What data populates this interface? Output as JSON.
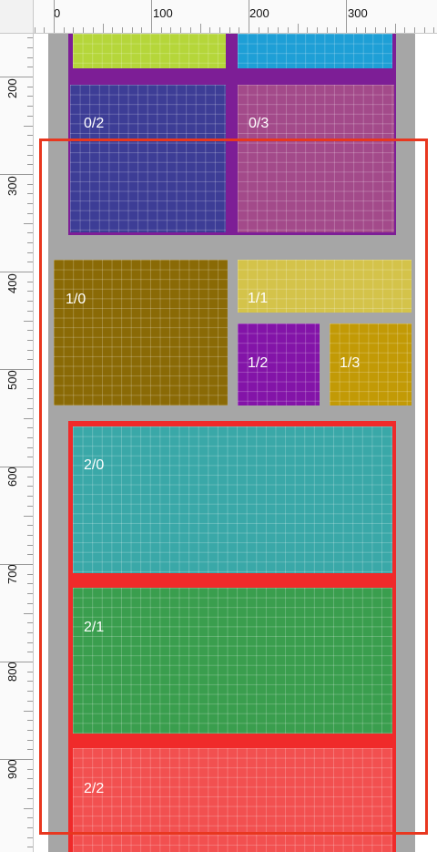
{
  "ruler": {
    "top_labels": [
      "0",
      "100",
      "200",
      "300"
    ],
    "left_labels": [
      "200",
      "300",
      "400",
      "500",
      "600",
      "700",
      "800",
      "900"
    ]
  },
  "groups": [
    {
      "id": "group-0",
      "color": "#7d1e96",
      "cells": [
        {
          "label": "",
          "color": "#b5d63a"
        },
        {
          "label": "",
          "color": "#1e9fd6"
        },
        {
          "label": "0/2",
          "color": "#3d3d96"
        },
        {
          "label": "0/3",
          "color": "#a34a8a"
        }
      ]
    },
    {
      "id": "group-1",
      "cells": [
        {
          "label": "1/0",
          "color": "#8a6a06"
        },
        {
          "label": "1/1",
          "color": "#d4c34a"
        },
        {
          "label": "1/2",
          "color": "#8314a8"
        },
        {
          "label": "1/3",
          "color": "#c29a06"
        }
      ]
    },
    {
      "id": "group-2",
      "color": "#f02a2a",
      "cells": [
        {
          "label": "2/0",
          "color": "#3aa8a8"
        },
        {
          "label": "2/1",
          "color": "#3a9e4e"
        },
        {
          "label": "2/2",
          "color": "#f25050"
        }
      ]
    }
  ],
  "colors": {
    "column_bg": "#a6a6a6",
    "selection": "#e8371f"
  }
}
